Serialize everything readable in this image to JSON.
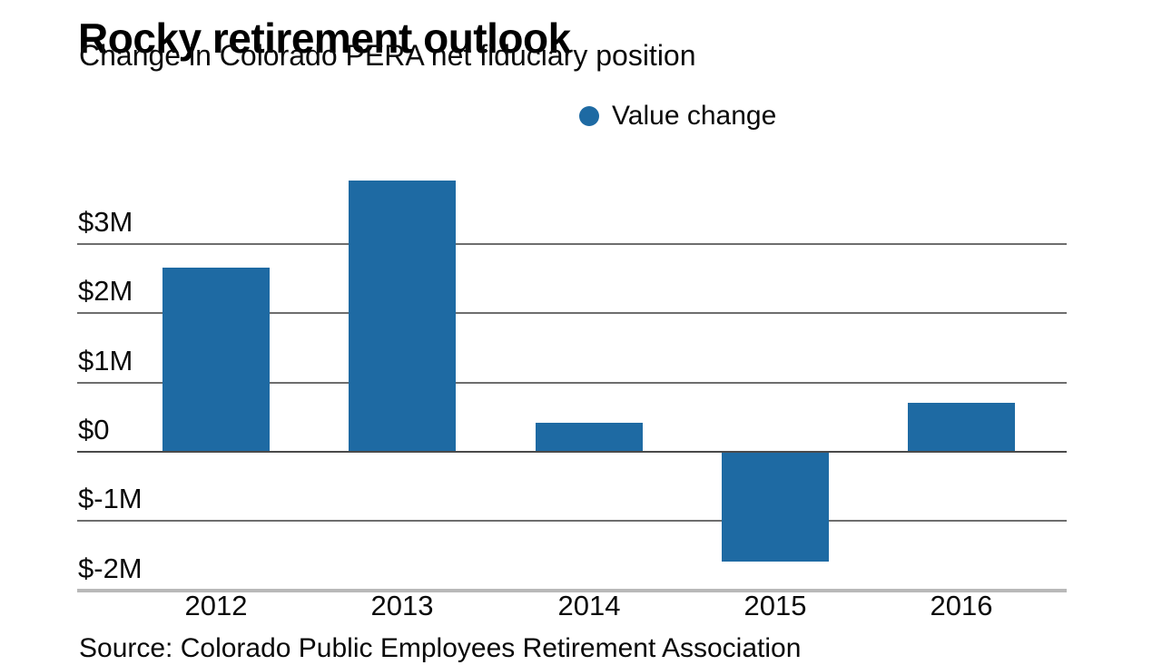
{
  "title": "Rocky retirement outlook",
  "subtitle": "Change in Colorado PERA net fiduciary position",
  "legend": {
    "label": "Value change"
  },
  "source": "Source: Colorado Public Employees Retirement Association",
  "colors": {
    "bar": "#1e6aa3",
    "grid": "#6e6e6e",
    "zero_line": "#4a4a4a",
    "baseline": "#b9b9b9",
    "text": "#0a0a0a"
  },
  "chart_data": {
    "type": "bar",
    "title": "Rocky retirement outlook",
    "subtitle": "Change in Colorado PERA net fiduciary position",
    "categories": [
      "2012",
      "2013",
      "2014",
      "2015",
      "2016"
    ],
    "series": [
      {
        "name": "Value change",
        "values": [
          2.65,
          3.9,
          0.4,
          -1.6,
          0.7
        ]
      }
    ],
    "yticks": [
      {
        "value": 3,
        "label": "$3M"
      },
      {
        "value": 2,
        "label": "$2M"
      },
      {
        "value": 1,
        "label": "$1M"
      },
      {
        "value": 0,
        "label": "$0"
      },
      {
        "value": -1,
        "label": "$-1M"
      },
      {
        "value": -2,
        "label": "$-2M"
      }
    ],
    "ylim": [
      -2,
      4.1
    ],
    "grid": true,
    "legend_position": "top-center",
    "xlabel": "",
    "ylabel": ""
  }
}
